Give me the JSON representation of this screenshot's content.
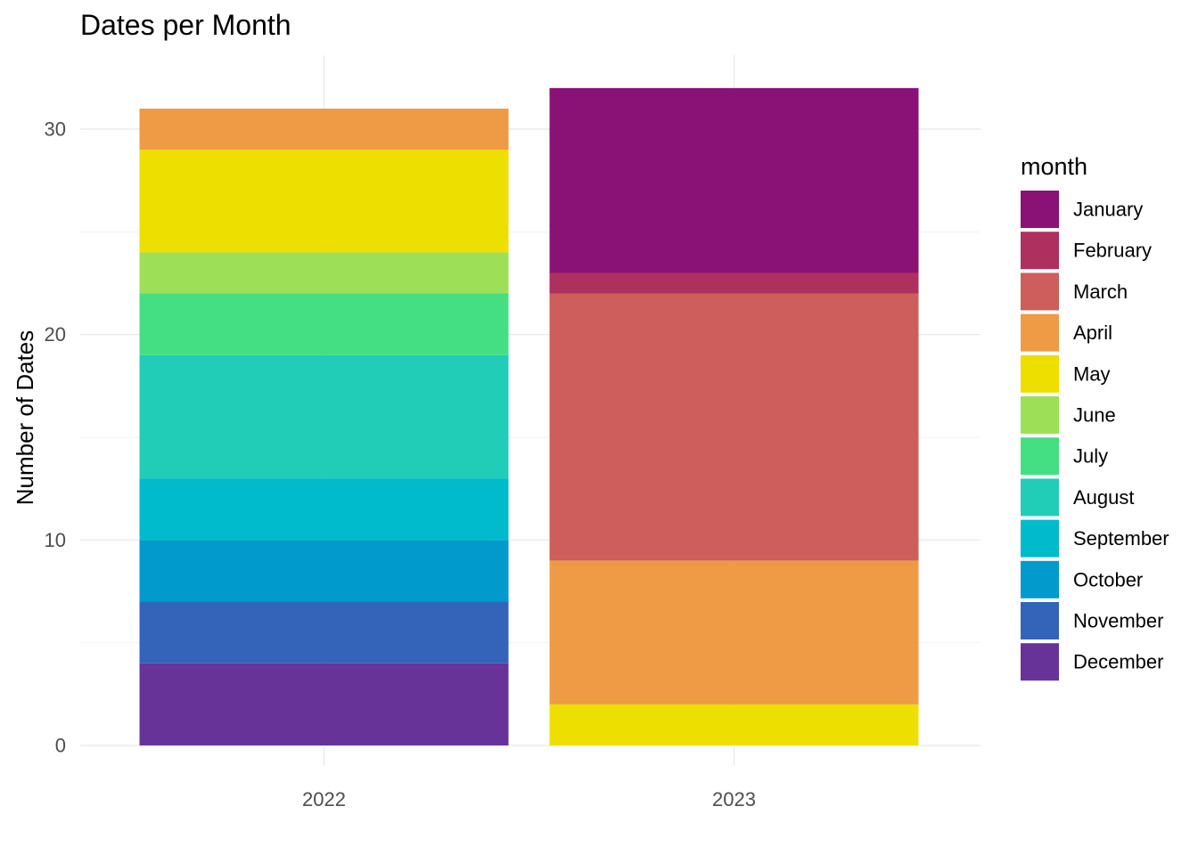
{
  "chart_data": {
    "type": "bar",
    "stacked": true,
    "title": "Dates per Month",
    "xlabel": "",
    "ylabel": "Number of Dates",
    "categories": [
      "2022",
      "2023"
    ],
    "ylim": [
      0,
      32
    ],
    "yticks": [
      0,
      10,
      20,
      30
    ],
    "grid": true,
    "legend": {
      "title": "month",
      "position": "right"
    },
    "series": [
      {
        "name": "January",
        "color": "#8A1176",
        "values": [
          0,
          9
        ]
      },
      {
        "name": "February",
        "color": "#AE305F",
        "values": [
          0,
          1
        ]
      },
      {
        "name": "March",
        "color": "#CD5E5C",
        "values": [
          0,
          13
        ]
      },
      {
        "name": "April",
        "color": "#EF9A44",
        "values": [
          2,
          7
        ]
      },
      {
        "name": "May",
        "color": "#EDDF00",
        "values": [
          5,
          2
        ]
      },
      {
        "name": "June",
        "color": "#9DDF57",
        "values": [
          2,
          0
        ]
      },
      {
        "name": "July",
        "color": "#45DF83",
        "values": [
          3,
          0
        ]
      },
      {
        "name": "August",
        "color": "#22CDB8",
        "values": [
          6,
          0
        ]
      },
      {
        "name": "September",
        "color": "#00BBCC",
        "values": [
          3,
          0
        ]
      },
      {
        "name": "October",
        "color": "#009ACC",
        "values": [
          3,
          0
        ]
      },
      {
        "name": "November",
        "color": "#3364BA",
        "values": [
          3,
          0
        ]
      },
      {
        "name": "December",
        "color": "#673399",
        "values": [
          4,
          0
        ]
      }
    ]
  }
}
